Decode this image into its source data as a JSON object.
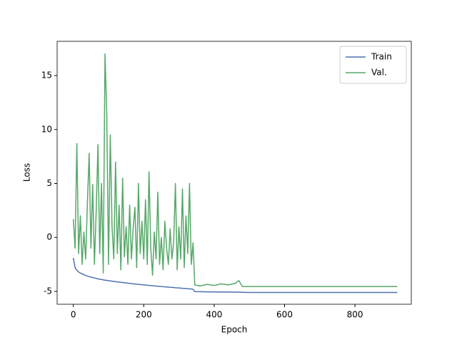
{
  "chart_data": {
    "type": "line",
    "x_label": "Epoch",
    "y_label": "Loss",
    "x": [
      0,
      5,
      10,
      15,
      20,
      25,
      30,
      35,
      40,
      45,
      50,
      55,
      60,
      65,
      70,
      75,
      80,
      85,
      90,
      95,
      100,
      105,
      110,
      115,
      120,
      125,
      130,
      135,
      140,
      145,
      150,
      155,
      160,
      165,
      170,
      175,
      180,
      185,
      190,
      195,
      200,
      205,
      210,
      215,
      220,
      225,
      230,
      235,
      240,
      245,
      250,
      255,
      260,
      265,
      270,
      275,
      280,
      285,
      290,
      295,
      300,
      305,
      310,
      315,
      320,
      325,
      330,
      335,
      340,
      345,
      360,
      380,
      400,
      420,
      440,
      460,
      470,
      480,
      500,
      600,
      700,
      800,
      920
    ],
    "series": [
      {
        "name": "Train",
        "color": "#4c72b0",
        "values": [
          -1.9,
          -2.8,
          -3.05,
          -3.2,
          -3.3,
          -3.38,
          -3.45,
          -3.52,
          -3.58,
          -3.63,
          -3.68,
          -3.72,
          -3.76,
          -3.8,
          -3.84,
          -3.87,
          -3.9,
          -3.93,
          -3.96,
          -3.98,
          -4.0,
          -4.03,
          -4.05,
          -4.07,
          -4.1,
          -4.12,
          -4.14,
          -4.16,
          -4.18,
          -4.2,
          -4.22,
          -4.24,
          -4.26,
          -4.28,
          -4.3,
          -4.31,
          -4.33,
          -4.35,
          -4.36,
          -4.38,
          -4.4,
          -4.41,
          -4.43,
          -4.44,
          -4.46,
          -4.47,
          -4.49,
          -4.5,
          -4.52,
          -4.53,
          -4.55,
          -4.56,
          -4.58,
          -4.59,
          -4.6,
          -4.62,
          -4.63,
          -4.64,
          -4.66,
          -4.67,
          -4.68,
          -4.7,
          -4.71,
          -4.72,
          -4.74,
          -4.75,
          -4.76,
          -4.78,
          -4.8,
          -5.02,
          -5.03,
          -5.04,
          -5.05,
          -5.06,
          -5.06,
          -5.07,
          -5.07,
          -5.08,
          -5.1,
          -5.1,
          -5.1,
          -5.1,
          -5.1
        ]
      },
      {
        "name": "Val.",
        "color": "#55a868",
        "values": [
          1.7,
          -1.0,
          8.7,
          -1.5,
          2.0,
          -2.5,
          0.5,
          -2.0,
          3.2,
          7.8,
          -1.0,
          4.9,
          -2.5,
          2.5,
          8.6,
          -1.5,
          5.0,
          -3.3,
          17.0,
          11.3,
          -2.5,
          9.5,
          1.0,
          -2.0,
          7.0,
          -1.5,
          3.0,
          -3.0,
          5.5,
          -1.8,
          1.0,
          -2.5,
          3.0,
          -2.0,
          0.8,
          2.8,
          -2.8,
          5.0,
          -1.5,
          1.5,
          -2.0,
          3.5,
          -2.5,
          6.1,
          -1.0,
          -3.5,
          0.5,
          -2.0,
          4.2,
          -2.5,
          0.0,
          -3.0,
          1.5,
          -1.0,
          -2.5,
          0.8,
          -2.0,
          -0.5,
          5.0,
          -3.0,
          1.0,
          -2.0,
          4.5,
          -2.8,
          2.0,
          -1.5,
          5.0,
          -2.5,
          -0.5,
          -4.4,
          -4.5,
          -4.35,
          -4.45,
          -4.3,
          -4.4,
          -4.25,
          -4.0,
          -4.55,
          -4.55,
          -4.55,
          -4.55,
          -4.55,
          -4.55
        ]
      }
    ],
    "xlim": [
      -46,
      960
    ],
    "xticks": [
      0,
      200,
      400,
      600,
      800
    ],
    "ylim": [
      -6.19,
      18.17
    ],
    "yticks": [
      -5,
      0,
      5,
      10,
      15
    ],
    "legend": "upper right",
    "grid": false
  }
}
